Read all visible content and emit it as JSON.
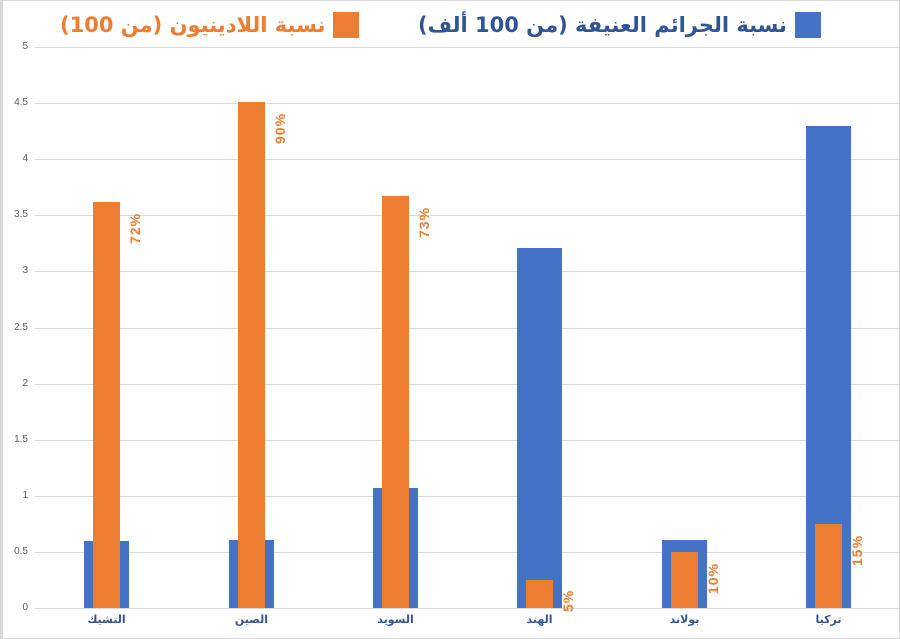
{
  "chart_data": {
    "type": "bar",
    "title": "",
    "xlabel": "",
    "ylabel": "",
    "ylim": [
      0,
      5
    ],
    "yticks": [
      "0",
      "0.5",
      "1",
      "1.5",
      "2",
      "2.5",
      "3",
      "3.5",
      "4",
      "4.5",
      "5"
    ],
    "grid": true,
    "legend_position": "top",
    "overlapped_bars": true,
    "categories": [
      "التشيك",
      "الصين",
      "السويد",
      "الهند",
      "بولاند",
      "تركيا"
    ],
    "series": [
      {
        "name": "نسبة الجرائم العنيفة (من 100 ألف)",
        "color": "#4472c4",
        "values": [
          0.6,
          0.61,
          1.07,
          3.21,
          0.61,
          4.3
        ]
      },
      {
        "name": "نسبة اللادينيون (من 100)",
        "color": "#ed7d31",
        "values": [
          3.62,
          4.51,
          3.67,
          0.25,
          0.5,
          0.75
        ],
        "data_labels": [
          "72%",
          "90%",
          "73%",
          "5%",
          "10%",
          "15%"
        ]
      }
    ]
  },
  "legend": {
    "blue_label": "نسبة الجرائم العنيفة (من 100 ألف)",
    "orange_label": "نسبة اللادينيون (من 100)"
  }
}
